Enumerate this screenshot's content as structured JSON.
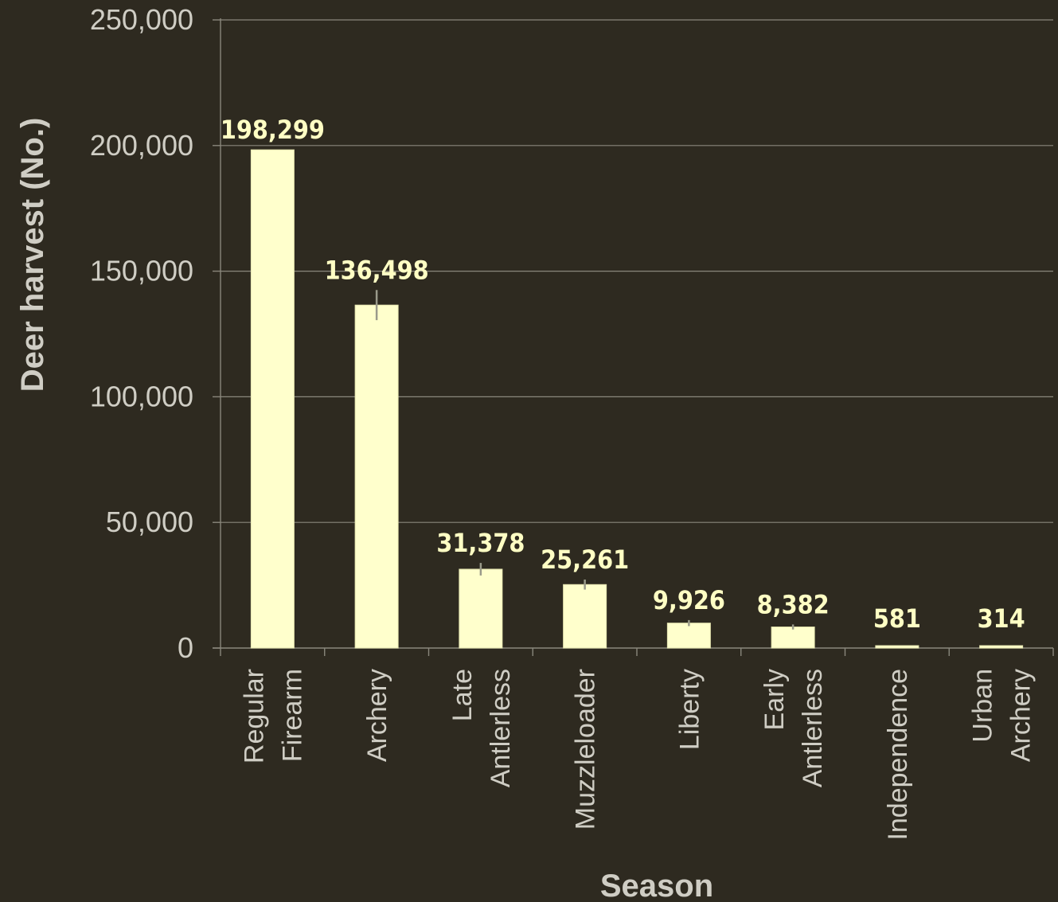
{
  "chart_data": {
    "type": "bar",
    "categories": [
      [
        "Regular",
        "Firearm"
      ],
      [
        "Archery"
      ],
      [
        "Late",
        "Antlerless"
      ],
      [
        "Muzzleloader"
      ],
      [
        "Liberty"
      ],
      [
        "Early",
        "Antlerless"
      ],
      [
        "Independence"
      ],
      [
        "Urban",
        "Archery"
      ]
    ],
    "values": [
      198299,
      136498,
      31378,
      25261,
      9926,
      8382,
      581,
      314
    ],
    "data_labels": [
      "198,299",
      "136,498",
      "31,378",
      "25,261",
      "9,926",
      "8,382",
      "581",
      "314"
    ],
    "error_bars": [
      null,
      6000,
      2500,
      2000,
      1200,
      1000,
      null,
      null
    ],
    "xlabel": "Season",
    "ylabel": "Deer harvest (No.)",
    "ylim": [
      0,
      250000
    ],
    "yticks": [
      0,
      50000,
      100000,
      150000,
      200000,
      250000
    ],
    "ytick_labels": [
      "0",
      "50,000",
      "100,000",
      "150,000",
      "200,000",
      "250,000"
    ],
    "grid": true,
    "legend": "none",
    "colors": {
      "background": "#2e2a20",
      "bar": "#ffffcc",
      "text": "#cfcdc4",
      "data_label": "#ffffc4",
      "grid": "#8a877c"
    }
  }
}
